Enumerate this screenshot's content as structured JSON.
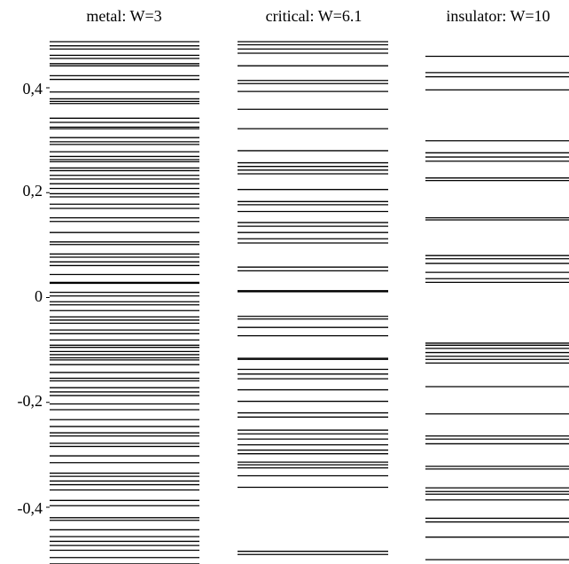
{
  "chart_data": [
    {
      "type": "spectrum",
      "title": "metal: W=3",
      "ylim": [
        -0.5,
        0.5
      ],
      "yticks": [
        0.4,
        0.2,
        0,
        -0.2,
        -0.4
      ],
      "ytick_labels": [
        "0,4",
        "0,2",
        "0",
        "-0,2",
        "-0,4"
      ],
      "levels": [
        0.488,
        0.48,
        0.474,
        0.462,
        0.456,
        0.446,
        0.442,
        0.423,
        0.416,
        0.392,
        0.379,
        0.374,
        0.37,
        0.342,
        0.334,
        0.325,
        0.322,
        0.305,
        0.297,
        0.292,
        0.278,
        0.269,
        0.263,
        0.259,
        0.247,
        0.242,
        0.233,
        0.226,
        0.217,
        0.208,
        0.198,
        0.192,
        0.178,
        0.17,
        0.152,
        0.145,
        0.124,
        0.106,
        0.101,
        0.083,
        0.077,
        0.068,
        0.061,
        0.044,
        0.029,
        0.027,
        0.01,
        0.003,
        -0.008,
        -0.014,
        -0.025,
        -0.037,
        -0.043,
        -0.049,
        -0.062,
        -0.069,
        -0.081,
        -0.091,
        -0.095,
        -0.103,
        -0.109,
        -0.115,
        -0.119,
        -0.128,
        -0.143,
        -0.154,
        -0.159,
        -0.172,
        -0.18,
        -0.187,
        -0.203,
        -0.214,
        -0.233,
        -0.246,
        -0.258,
        -0.264,
        -0.278,
        -0.284,
        -0.302,
        -0.315,
        -0.335,
        -0.341,
        -0.35,
        -0.357,
        -0.367,
        -0.387,
        -0.397,
        -0.42,
        -0.425,
        -0.443,
        -0.456,
        -0.465,
        -0.473,
        -0.482,
        -0.496,
        -0.508
      ]
    },
    {
      "type": "spectrum",
      "title": "critical: W=6.1",
      "ylim": [
        -0.5,
        0.5
      ],
      "levels": [
        0.488,
        0.482,
        0.474,
        0.466,
        0.442,
        0.414,
        0.408,
        0.393,
        0.359,
        0.322,
        0.28,
        0.257,
        0.25,
        0.243,
        0.236,
        0.206,
        0.183,
        0.177,
        0.164,
        0.143,
        0.136,
        0.124,
        0.112,
        0.104,
        0.058,
        0.051,
        0.013,
        0.011,
        -0.036,
        -0.041,
        -0.057,
        -0.073,
        -0.116,
        -0.118,
        -0.137,
        -0.146,
        -0.155,
        -0.176,
        -0.198,
        -0.22,
        -0.228,
        -0.253,
        -0.26,
        -0.27,
        -0.281,
        -0.291,
        -0.298,
        -0.314,
        -0.319,
        -0.325,
        -0.34,
        -0.362,
        -0.484,
        -0.49
      ]
    },
    {
      "type": "spectrum",
      "title": "insulator: W=10",
      "ylim": [
        -0.5,
        0.5
      ],
      "levels": [
        0.46,
        0.429,
        0.421,
        0.396,
        0.299,
        0.276,
        0.268,
        0.26,
        0.228,
        0.223,
        0.152,
        0.148,
        0.08,
        0.074,
        0.065,
        0.048,
        0.036,
        0.029,
        -0.087,
        -0.091,
        -0.097,
        -0.105,
        -0.112,
        -0.118,
        -0.125,
        -0.17,
        -0.222,
        -0.264,
        -0.27,
        -0.279,
        -0.322,
        -0.327,
        -0.363,
        -0.37,
        -0.375,
        -0.386,
        -0.421,
        -0.428,
        -0.457,
        -0.5
      ]
    }
  ]
}
